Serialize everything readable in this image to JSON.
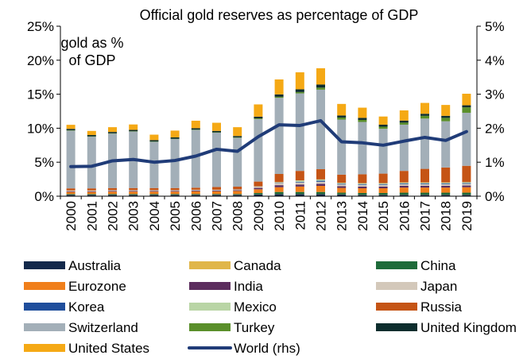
{
  "chart_data": {
    "type": "bar",
    "title": "Official gold reserves as percentage of GDP",
    "annotation": "gold as %\nof GDP",
    "categories": [
      "2000",
      "2001",
      "2002",
      "2003",
      "2004",
      "2005",
      "2006",
      "2007",
      "2008",
      "2009",
      "2010",
      "2011",
      "2012",
      "2013",
      "2014",
      "2015",
      "2016",
      "2017",
      "2018",
      "2019"
    ],
    "ylim": [
      0,
      25
    ],
    "y2lim": [
      0,
      5
    ],
    "yticks": [
      "0%",
      "5%",
      "10%",
      "15%",
      "20%",
      "25%"
    ],
    "y2ticks": [
      "0%",
      "1%",
      "2%",
      "3%",
      "4%",
      "5%"
    ],
    "stacked": true,
    "series": [
      {
        "name": "Australia",
        "color": "#13294b",
        "values": [
          0.2,
          0.2,
          0.2,
          0.2,
          0.2,
          0.2,
          0.2,
          0.2,
          0.2,
          0.25,
          0.3,
          0.3,
          0.3,
          0.25,
          0.2,
          0.2,
          0.2,
          0.2,
          0.2,
          0.2
        ]
      },
      {
        "name": "Canada",
        "color": "#e0b64a",
        "values": [
          0.02,
          0.02,
          0.02,
          0.02,
          0.02,
          0.02,
          0.02,
          0.02,
          0.02,
          0.02,
          0.02,
          0.02,
          0.02,
          0.02,
          0.02,
          0.02,
          0.02,
          0.02,
          0.02,
          0.02
        ]
      },
      {
        "name": "China",
        "color": "#1e6b3a",
        "values": [
          0.1,
          0.1,
          0.1,
          0.1,
          0.1,
          0.1,
          0.1,
          0.1,
          0.1,
          0.2,
          0.3,
          0.3,
          0.3,
          0.25,
          0.25,
          0.25,
          0.3,
          0.3,
          0.3,
          0.3
        ]
      },
      {
        "name": "Eurozone",
        "color": "#f07f1b",
        "values": [
          0.3,
          0.3,
          0.35,
          0.35,
          0.35,
          0.35,
          0.4,
          0.4,
          0.45,
          0.55,
          0.7,
          0.8,
          0.9,
          0.7,
          0.7,
          0.7,
          0.75,
          0.75,
          0.75,
          0.8
        ]
      },
      {
        "name": "India",
        "color": "#5c2d5e",
        "values": [
          0.1,
          0.1,
          0.1,
          0.1,
          0.1,
          0.1,
          0.1,
          0.1,
          0.1,
          0.2,
          0.3,
          0.3,
          0.3,
          0.25,
          0.25,
          0.25,
          0.25,
          0.25,
          0.25,
          0.25
        ]
      },
      {
        "name": "Japan",
        "color": "#d3c8ba",
        "values": [
          0.1,
          0.1,
          0.1,
          0.1,
          0.1,
          0.1,
          0.1,
          0.1,
          0.1,
          0.2,
          0.3,
          0.3,
          0.3,
          0.25,
          0.25,
          0.25,
          0.25,
          0.25,
          0.25,
          0.25
        ]
      },
      {
        "name": "Korea",
        "color": "#1f4e9c",
        "values": [
          0.01,
          0.01,
          0.01,
          0.01,
          0.01,
          0.01,
          0.01,
          0.01,
          0.01,
          0.01,
          0.05,
          0.1,
          0.15,
          0.1,
          0.1,
          0.1,
          0.1,
          0.1,
          0.1,
          0.1
        ]
      },
      {
        "name": "Mexico",
        "color": "#b9d5a5",
        "values": [
          0.02,
          0.02,
          0.02,
          0.02,
          0.02,
          0.02,
          0.02,
          0.02,
          0.02,
          0.02,
          0.1,
          0.2,
          0.2,
          0.15,
          0.15,
          0.15,
          0.15,
          0.15,
          0.15,
          0.15
        ]
      },
      {
        "name": "Russia",
        "color": "#c55415",
        "values": [
          0.3,
          0.3,
          0.3,
          0.3,
          0.3,
          0.3,
          0.3,
          0.4,
          0.4,
          0.7,
          1.2,
          1.4,
          1.5,
          1.2,
          1.3,
          1.4,
          1.7,
          2.0,
          2.2,
          2.4
        ]
      },
      {
        "name": "Switzerland",
        "color": "#a3afb8",
        "values": [
          8.5,
          7.6,
          8.0,
          8.3,
          6.8,
          7.2,
          8.5,
          8.0,
          7.2,
          9.2,
          11.2,
          11.4,
          11.7,
          8.1,
          7.7,
          6.6,
          6.8,
          7.4,
          6.8,
          7.8
        ]
      },
      {
        "name": "Turkey",
        "color": "#5a8f2a",
        "values": [
          0.05,
          0.05,
          0.05,
          0.05,
          0.05,
          0.05,
          0.05,
          0.05,
          0.05,
          0.1,
          0.15,
          0.2,
          0.3,
          0.3,
          0.3,
          0.3,
          0.3,
          0.4,
          0.5,
          0.8
        ]
      },
      {
        "name": "United Kingdom",
        "color": "#0d2d2d",
        "values": [
          0.2,
          0.2,
          0.2,
          0.2,
          0.2,
          0.2,
          0.2,
          0.2,
          0.2,
          0.25,
          0.35,
          0.4,
          0.45,
          0.3,
          0.3,
          0.3,
          0.3,
          0.3,
          0.3,
          0.3
        ]
      },
      {
        "name": "United States",
        "color": "#f5a915",
        "values": [
          0.6,
          0.6,
          0.7,
          0.8,
          0.8,
          1.0,
          1.1,
          1.2,
          1.3,
          1.8,
          2.2,
          2.5,
          2.4,
          1.7,
          1.5,
          1.2,
          1.5,
          1.6,
          1.6,
          1.7
        ]
      },
      {
        "name": "World (rhs)",
        "color": "#203c78",
        "type": "line",
        "axis": "right",
        "values": [
          0.87,
          0.88,
          1.04,
          1.08,
          1.0,
          1.05,
          1.18,
          1.38,
          1.32,
          1.75,
          2.1,
          2.08,
          2.22,
          1.6,
          1.57,
          1.5,
          1.62,
          1.73,
          1.64,
          1.9
        ]
      }
    ],
    "legend_position": "bottom",
    "grid": false
  }
}
